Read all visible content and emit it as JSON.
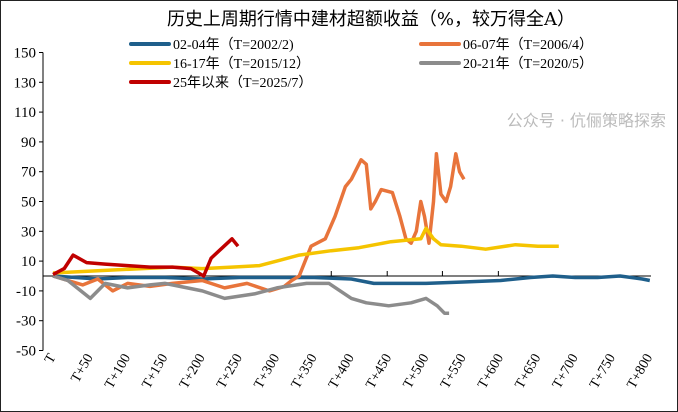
{
  "chart_data": {
    "type": "line",
    "title": "历史上周期行情中建材超额收益（%，较万得全A）",
    "xlabel": "",
    "ylabel": "",
    "ylim": [
      -50,
      150
    ],
    "yticks": [
      -50,
      -30,
      -10,
      10,
      30,
      50,
      70,
      90,
      110,
      130,
      150
    ],
    "xlim": [
      0,
      800
    ],
    "xticks": [
      "T",
      "T+50",
      "T+100",
      "T+150",
      "T+200",
      "T+250",
      "T+300",
      "T+350",
      "T+400",
      "T+450",
      "T+500",
      "T+550",
      "T+600",
      "T+650",
      "T+700",
      "T+750",
      "T+800"
    ],
    "grid": false,
    "legend_position": "top",
    "series": [
      {
        "name": "02-04年（T=2002/2)",
        "color": "#1f5f8b",
        "x": [
          0,
          30,
          60,
          100,
          150,
          200,
          250,
          300,
          350,
          400,
          430,
          470,
          500,
          550,
          600,
          640,
          670,
          700,
          730,
          760,
          790,
          800
        ],
        "y": [
          0,
          -1,
          -2,
          -1,
          -1,
          -2,
          -1,
          -1,
          -1,
          -2,
          -5,
          -5,
          -5,
          -4,
          -3,
          -1,
          0,
          -1,
          -1,
          0,
          -2,
          -3
        ]
      },
      {
        "name": "06-07年（T=2006/4）",
        "color": "#e8743b",
        "x": [
          0,
          20,
          40,
          60,
          80,
          100,
          130,
          160,
          200,
          230,
          260,
          290,
          310,
          320,
          330,
          346,
          365,
          378,
          392,
          400,
          413,
          420,
          426,
          432,
          440,
          455,
          465,
          473,
          480,
          487,
          493,
          498,
          504,
          510,
          514,
          520,
          527,
          533,
          540,
          545,
          551
        ],
        "y": [
          0,
          -3,
          -6,
          -2,
          -10,
          -5,
          -7,
          -5,
          -3,
          -8,
          -5,
          -10,
          -7,
          -3,
          0,
          20,
          25,
          40,
          60,
          65,
          78,
          75,
          45,
          50,
          58,
          56,
          40,
          25,
          22,
          30,
          50,
          40,
          22,
          50,
          82,
          55,
          50,
          60,
          82,
          70,
          65
        ]
      },
      {
        "name": "16-17年（T=2015/12）",
        "color": "#f5c400",
        "x": [
          0,
          40,
          80,
          120,
          160,
          200,
          240,
          277,
          300,
          330,
          373,
          410,
          453,
          493,
          500,
          510,
          520,
          547,
          580,
          620,
          650,
          678
        ],
        "y": [
          2,
          3,
          4,
          5,
          6,
          5,
          6,
          7,
          10,
          14,
          17,
          19,
          23,
          25,
          32,
          25,
          21,
          20,
          18,
          21,
          20,
          20
        ]
      },
      {
        "name": "20-21年（T=2020/5）",
        "color": "#8c8c8c",
        "x": [
          0,
          20,
          50,
          70,
          100,
          130,
          150,
          180,
          200,
          230,
          270,
          300,
          340,
          370,
          400,
          420,
          450,
          480,
          500,
          515,
          525,
          531
        ],
        "y": [
          0,
          -3,
          -15,
          -5,
          -8,
          -6,
          -5,
          -8,
          -10,
          -15,
          -12,
          -8,
          -5,
          -5,
          -15,
          -18,
          -20,
          -18,
          -15,
          -20,
          -25,
          -25
        ]
      },
      {
        "name": "25年以来（T=2025/7）",
        "color": "#c00000",
        "x": [
          0,
          15,
          27,
          45,
          70,
          100,
          130,
          160,
          185,
          202,
          212,
          225,
          240,
          248
        ],
        "y": [
          1,
          5,
          14,
          9,
          8,
          7,
          6,
          6,
          5,
          0,
          12,
          18,
          25,
          20
        ]
      }
    ]
  },
  "watermark": "公众号 · 伉俪策略探索"
}
